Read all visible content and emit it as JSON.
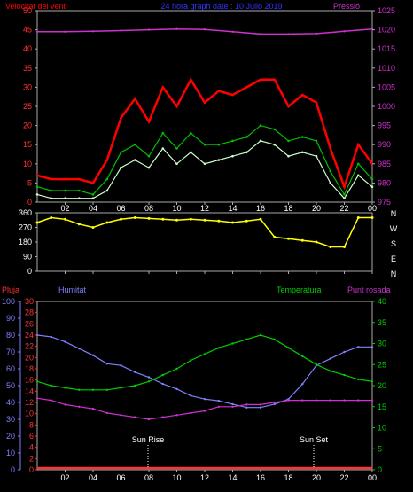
{
  "header": {
    "left_label": "Velocitat del vent",
    "center_label": "24 hora graph date : 10 Julio 2019",
    "right_label": "Pressió"
  },
  "lower_header": {
    "rain": "Pluja",
    "humidity": "Humitat",
    "temperature": "Temperatura",
    "dewpoint": "Punt rosada"
  },
  "annotations": {
    "sunrise": "Sun Rise",
    "sunset": "Sun Set"
  },
  "colors": {
    "wind_max": "#ff0000",
    "wind_avg": "#00c000",
    "wind_min": "#ccffcc",
    "pressure": "#cc33cc",
    "direction": "#ffff00",
    "rain": "#ff3333",
    "humidity": "#8080ff",
    "temperature": "#00cc00",
    "dewpoint": "#cc33cc",
    "frame": "#aaaaaa"
  },
  "chart_data": [
    {
      "type": "line",
      "x_ticks": [
        "02",
        "04",
        "06",
        "08",
        "10",
        "12",
        "14",
        "16",
        "18",
        "20",
        "22",
        "00"
      ],
      "y_left_ticks": [
        "0",
        "5",
        "10",
        "15",
        "20",
        "25",
        "30",
        "35",
        "40",
        "45",
        "50"
      ],
      "y_right_ticks": [
        "975",
        "980",
        "985",
        "990",
        "995",
        "1000",
        "1005",
        "1010",
        "1015",
        "1020",
        "1025"
      ],
      "ylim_left": [
        0,
        50
      ],
      "ylim_right": [
        975,
        1025
      ],
      "x_range_hours": [
        0,
        24
      ],
      "series": [
        {
          "key": "gust",
          "x": [
            0,
            1,
            2,
            3,
            4,
            5,
            6,
            7,
            8,
            9,
            10,
            11,
            12,
            13,
            14,
            15,
            16,
            17,
            18,
            19,
            20,
            21,
            22,
            23,
            24
          ],
          "y": [
            7,
            6,
            6,
            6,
            5,
            11,
            22,
            27,
            21,
            30,
            25,
            32,
            26,
            29,
            28,
            30,
            32,
            32,
            25,
            28,
            26,
            14,
            4,
            15,
            10
          ]
        },
        {
          "key": "avg",
          "x": [
            0,
            1,
            2,
            3,
            4,
            5,
            6,
            7,
            8,
            9,
            10,
            11,
            12,
            13,
            14,
            15,
            16,
            17,
            18,
            19,
            20,
            21,
            22,
            23,
            24
          ],
          "y": [
            4,
            3,
            3,
            3,
            2,
            6,
            13,
            15,
            12,
            18,
            14,
            18,
            15,
            15,
            16,
            17,
            20,
            19,
            16,
            17,
            16,
            8,
            2,
            10,
            6
          ]
        },
        {
          "key": "min",
          "x": [
            0,
            1,
            2,
            3,
            4,
            5,
            6,
            7,
            8,
            9,
            10,
            11,
            12,
            13,
            14,
            15,
            16,
            17,
            18,
            19,
            20,
            21,
            22,
            23,
            24
          ],
          "y": [
            2,
            1,
            1,
            1,
            1,
            3,
            9,
            11,
            9,
            14,
            10,
            13,
            10,
            11,
            12,
            13,
            16,
            15,
            12,
            13,
            12,
            5,
            1,
            7,
            4
          ]
        },
        {
          "key": "pressure",
          "x": [
            0,
            2,
            4,
            6,
            8,
            10,
            12,
            14,
            16,
            18,
            20,
            22,
            24
          ],
          "y": [
            1019.5,
            1019.5,
            1019.6,
            1019.8,
            1020,
            1020.2,
            1020.1,
            1019.5,
            1018.9,
            1018.9,
            1019,
            1019.6,
            1020.2
          ]
        }
      ]
    },
    {
      "type": "scatter",
      "x_ticks": [
        "02",
        "04",
        "06",
        "08",
        "10",
        "12",
        "14",
        "16",
        "18",
        "20",
        "22",
        "00"
      ],
      "y_ticks": [
        "0",
        "90",
        "180",
        "270",
        "360"
      ],
      "y_right_labels": [
        "N",
        "W",
        "S",
        "E",
        "N"
      ],
      "ylim": [
        0,
        360
      ],
      "series": [
        {
          "key": "direction",
          "x": [
            0,
            1,
            2,
            3,
            4,
            5,
            6,
            7,
            8,
            9,
            10,
            11,
            12,
            13,
            14,
            15,
            16,
            17,
            18,
            19,
            20,
            21,
            22,
            23,
            24
          ],
          "y": [
            300,
            330,
            320,
            290,
            270,
            300,
            320,
            330,
            325,
            320,
            315,
            320,
            315,
            310,
            300,
            310,
            320,
            210,
            200,
            190,
            180,
            150,
            150,
            330,
            330
          ]
        }
      ]
    },
    {
      "type": "line",
      "x_ticks": [
        "02",
        "04",
        "06",
        "08",
        "10",
        "12",
        "14",
        "16",
        "18",
        "20",
        "22",
        "00"
      ],
      "y_rain_ticks": [
        "0",
        "10",
        "20",
        "30",
        "40",
        "50",
        "60",
        "70",
        "80",
        "90",
        "100"
      ],
      "y_hum_ticks": [
        "0",
        "2",
        "4",
        "6",
        "8",
        "10",
        "12",
        "14",
        "16",
        "18",
        "20",
        "22",
        "24",
        "26",
        "28",
        "30"
      ],
      "y_temp_ticks": [
        "0",
        "5",
        "10",
        "15",
        "20",
        "25",
        "30",
        "35",
        "40"
      ],
      "ylim_humidity": [
        0,
        100
      ],
      "ylim_temperature": [
        0,
        40
      ],
      "series": [
        {
          "key": "humidity",
          "x": [
            0,
            1,
            2,
            3,
            4,
            5,
            6,
            7,
            8,
            9,
            10,
            11,
            12,
            13,
            14,
            15,
            16,
            17,
            18,
            19,
            20,
            21,
            22,
            23,
            24
          ],
          "y": [
            80,
            79,
            76,
            72,
            68,
            63,
            62,
            58,
            55,
            51,
            48,
            44,
            42,
            41,
            39,
            37,
            37,
            39,
            42,
            51,
            62,
            66,
            70,
            73,
            73
          ]
        },
        {
          "key": "temperature",
          "x": [
            0,
            1,
            2,
            3,
            4,
            5,
            6,
            7,
            8,
            9,
            10,
            11,
            12,
            13,
            14,
            15,
            16,
            17,
            18,
            19,
            20,
            21,
            22,
            23,
            24
          ],
          "y": [
            21,
            20,
            19.5,
            19,
            19,
            19,
            19.5,
            20,
            21,
            22.5,
            24,
            26,
            27.5,
            29,
            30,
            31,
            32,
            31,
            29,
            27,
            25,
            23.5,
            22.5,
            21.5,
            21
          ]
        },
        {
          "key": "dewpoint",
          "x": [
            0,
            1,
            2,
            3,
            4,
            5,
            6,
            7,
            8,
            9,
            10,
            11,
            12,
            13,
            14,
            15,
            16,
            17,
            18,
            19,
            20,
            21,
            22,
            23,
            24
          ],
          "y": [
            17,
            16.5,
            15.5,
            15,
            14.5,
            13.5,
            13,
            12.5,
            12,
            12.5,
            13,
            13.5,
            14,
            15,
            15,
            15.5,
            15.5,
            16,
            16.5,
            16.5,
            16.5,
            16.5,
            16.5,
            16.5,
            16.5
          ]
        },
        {
          "key": "rain",
          "x": [
            0,
            24
          ],
          "y": [
            0,
            0
          ]
        }
      ]
    }
  ]
}
